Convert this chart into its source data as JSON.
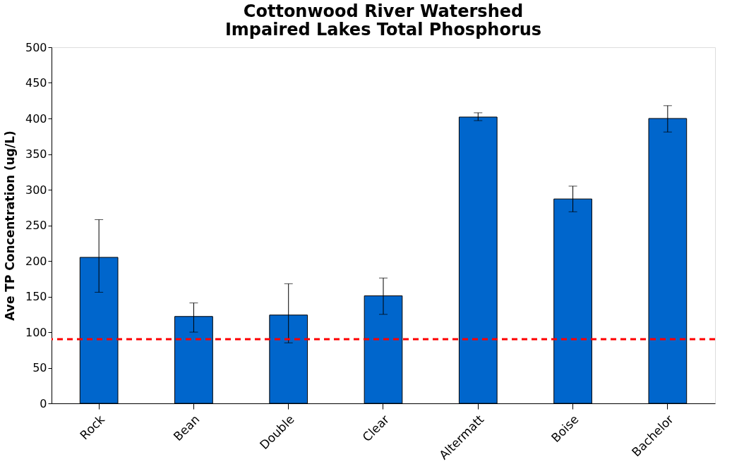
{
  "chart_data": {
    "type": "bar",
    "title": [
      "Cottonwood River Watershed",
      "Impaired Lakes Total Phosphorus"
    ],
    "ylabel": "Ave TP Concentration  (ug/L)",
    "categories": [
      "Rock",
      "Bean",
      "Double",
      "Clear",
      "Altermatt",
      "Boise",
      "Bachelor"
    ],
    "series": [
      {
        "color": "#0066cc",
        "values": [
          205,
          122,
          124,
          151,
          402,
          287,
          400
        ],
        "errors": [
          [
            156,
            258
          ],
          [
            100,
            141
          ],
          [
            85,
            168
          ],
          [
            125,
            176
          ],
          [
            397,
            408
          ],
          [
            269,
            305
          ],
          [
            381,
            418
          ]
        ]
      }
    ],
    "ylim": [
      0,
      500
    ],
    "yticks": [
      0,
      50,
      100,
      150,
      200,
      250,
      300,
      350,
      400,
      450,
      500
    ],
    "ref_lines": [
      {
        "axis": "y",
        "value": 90,
        "color": "#ff0000",
        "line_style": "dashed"
      }
    ],
    "grid": false
  }
}
